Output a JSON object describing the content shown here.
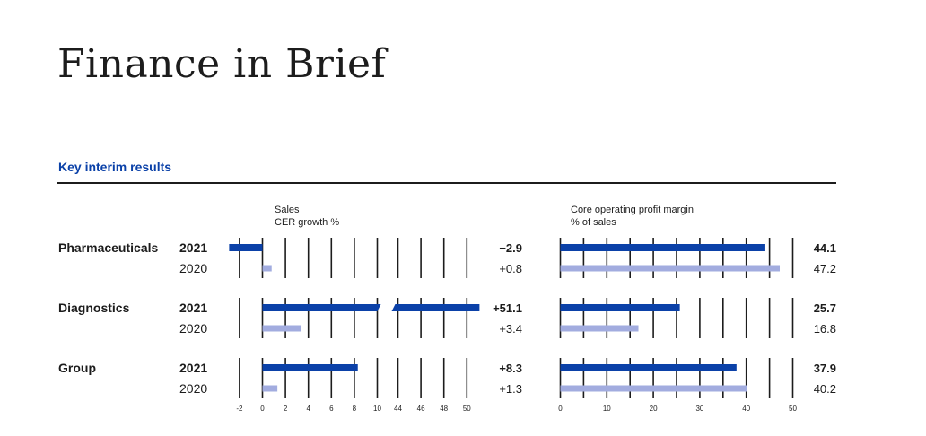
{
  "page": {
    "title": "Finance in Brief"
  },
  "section": {
    "title": "Key interim results"
  },
  "colors": {
    "current": "#0b41a8",
    "previous": "#a2acdf",
    "axis": "#1c1c1c",
    "text": "#1c1c1c"
  },
  "chart_data": [
    {
      "type": "bar",
      "orientation": "horizontal",
      "title_lines": [
        "Sales",
        "CER growth %"
      ],
      "axis_break": {
        "from": 10,
        "to": 44
      },
      "ticks": [
        "-2",
        "0",
        "2",
        "4",
        "6",
        "8",
        "10",
        "44",
        "46",
        "48",
        "50"
      ],
      "categories": [
        "Pharmaceuticals",
        "Diagnostics",
        "Group"
      ],
      "series": [
        {
          "name": "2021",
          "values": [
            -2.9,
            51.1,
            8.3
          ],
          "labels": [
            "−2.9",
            "+51.1",
            "+8.3"
          ]
        },
        {
          "name": "2020",
          "values": [
            0.8,
            3.4,
            1.3
          ],
          "labels": [
            "+0.8",
            "+3.4",
            "+1.3"
          ]
        }
      ]
    },
    {
      "type": "bar",
      "orientation": "horizontal",
      "title_lines": [
        "Core operating profit margin",
        "% of sales"
      ],
      "xlim": [
        0,
        50
      ],
      "ticks": [
        "0",
        "10",
        "20",
        "30",
        "40",
        "50"
      ],
      "categories": [
        "Pharmaceuticals",
        "Diagnostics",
        "Group"
      ],
      "series": [
        {
          "name": "2021",
          "values": [
            44.1,
            25.7,
            37.9
          ],
          "labels": [
            "44.1",
            "25.7",
            "37.9"
          ]
        },
        {
          "name": "2020",
          "values": [
            47.2,
            16.8,
            40.2
          ],
          "labels": [
            "47.2",
            "16.8",
            "40.2"
          ]
        }
      ]
    }
  ]
}
